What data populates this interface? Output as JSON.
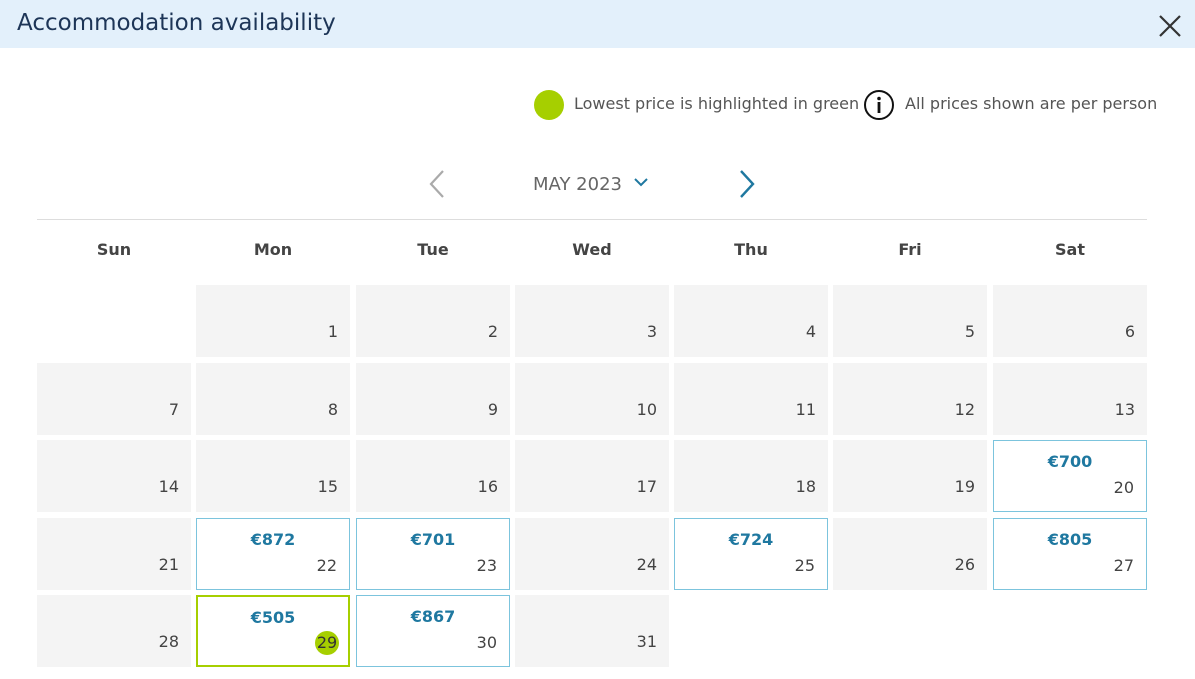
{
  "header": {
    "title": "Accommodation availability"
  },
  "legend": {
    "lowest": "Lowest price is highlighted in green",
    "info": "All prices shown are per person"
  },
  "nav": {
    "month": "MAY 2023"
  },
  "weekdays": [
    "Sun",
    "Mon",
    "Tue",
    "Wed",
    "Thu",
    "Fri",
    "Sat"
  ],
  "weeks": [
    [
      null,
      {
        "day": "1"
      },
      {
        "day": "2"
      },
      {
        "day": "3"
      },
      {
        "day": "4"
      },
      {
        "day": "5"
      },
      {
        "day": "6"
      }
    ],
    [
      {
        "day": "7"
      },
      {
        "day": "8"
      },
      {
        "day": "9"
      },
      {
        "day": "10"
      },
      {
        "day": "11"
      },
      {
        "day": "12"
      },
      {
        "day": "13"
      }
    ],
    [
      {
        "day": "14"
      },
      {
        "day": "15"
      },
      {
        "day": "16"
      },
      {
        "day": "17"
      },
      {
        "day": "18"
      },
      {
        "day": "19"
      },
      {
        "day": "20",
        "price": "€700"
      }
    ],
    [
      {
        "day": "21"
      },
      {
        "day": "22",
        "price": "€872"
      },
      {
        "day": "23",
        "price": "€701"
      },
      {
        "day": "24"
      },
      {
        "day": "25",
        "price": "€724"
      },
      {
        "day": "26"
      },
      {
        "day": "27",
        "price": "€805"
      }
    ],
    [
      {
        "day": "28"
      },
      {
        "day": "29",
        "price": "€505",
        "lowest": true
      },
      {
        "day": "30",
        "price": "€867"
      },
      {
        "day": "31"
      },
      null,
      null,
      null
    ]
  ]
}
